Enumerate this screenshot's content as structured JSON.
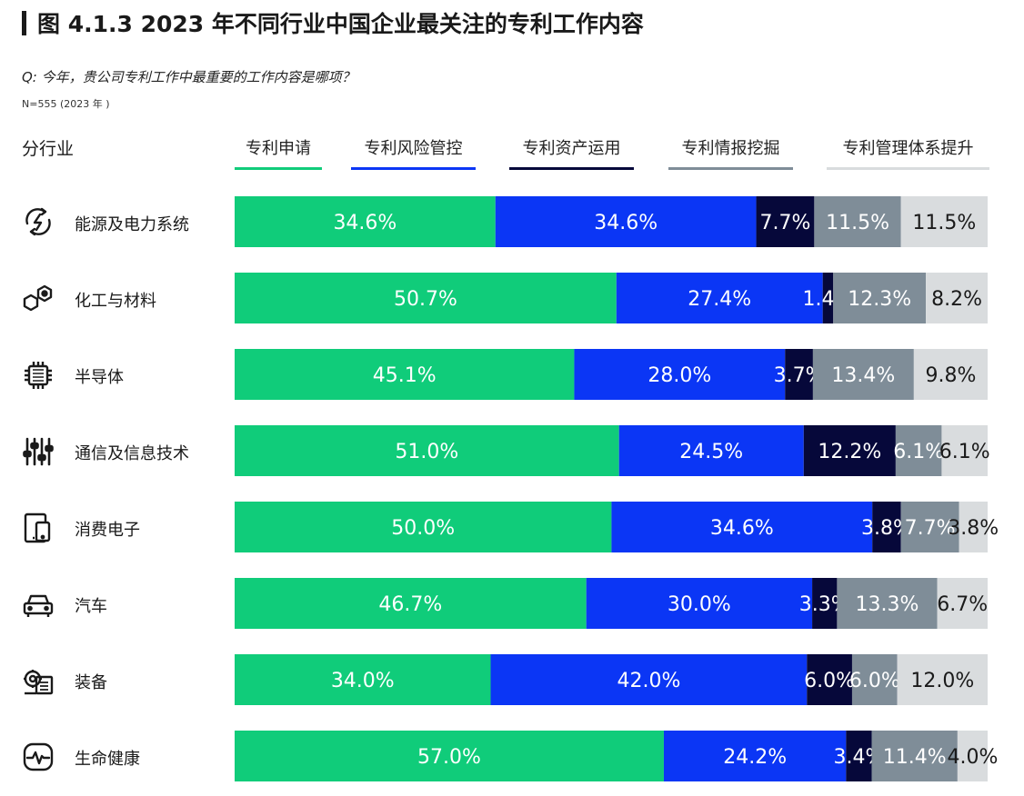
{
  "title": "图 4.1.3 2023 年不同行业中国企业最关注的专利工作内容",
  "question": "Q: 今年，贵公司专利工作中最重要的工作内容是哪项？",
  "sample": "N=555 (2023 年 )",
  "row_header": "分行业",
  "chart_data": {
    "type": "bar",
    "orientation": "horizontal",
    "stacked": true,
    "normalized": true,
    "title": "图 4.1.3 2023 年不同行业中国企业最关注的专利工作内容",
    "categories": [
      "能源及电力系统",
      "化工与材料",
      "半导体",
      "通信及信息技术",
      "消费电子",
      "汽车",
      "装备",
      "生命健康"
    ],
    "series": [
      {
        "name": "专利申请",
        "color": "#10cc7a",
        "values": [
          34.6,
          50.7,
          45.1,
          51.0,
          50.0,
          46.7,
          34.0,
          57.0
        ]
      },
      {
        "name": "专利风险管控",
        "color": "#0b36f5",
        "values": [
          34.6,
          27.4,
          28.0,
          24.5,
          34.6,
          30.0,
          42.0,
          24.2
        ]
      },
      {
        "name": "专利资产运用",
        "color": "#06083a",
        "values": [
          7.7,
          1.4,
          3.7,
          12.2,
          3.8,
          3.3,
          6.0,
          3.4
        ]
      },
      {
        "name": "专利情报挖掘",
        "color": "#7f8d98",
        "values": [
          11.5,
          12.3,
          13.4,
          6.1,
          7.7,
          13.3,
          6.0,
          11.4
        ]
      },
      {
        "name": "专利管理体系提升",
        "color": "#d9dcde",
        "values": [
          11.5,
          8.2,
          9.8,
          6.1,
          3.8,
          6.7,
          12.0,
          4.0
        ]
      }
    ],
    "labels": [
      [
        "34.6%",
        "34.6%",
        "7.7%",
        "11.5%",
        "11.5%"
      ],
      [
        "50.7%",
        "27.4%",
        "1.4%",
        "12.3%",
        "8.2%"
      ],
      [
        "45.1%",
        "28.0%",
        "3.7%",
        "13.4%",
        "9.8%"
      ],
      [
        "51.0%",
        "24.5%",
        "12.2%",
        "6.1%",
        "6.1%"
      ],
      [
        "50.0%",
        "34.6%",
        "3.8%",
        "7.7%",
        "3.8%"
      ],
      [
        "46.7%",
        "30.0%",
        "3.3%",
        "13.3%",
        "6.7%"
      ],
      [
        "34.0%",
        "42.0%",
        "6.0%",
        "6.0%",
        "12.0%"
      ],
      [
        "57.0%",
        "24.2%",
        "3.4%",
        "11.4%",
        "4.0%"
      ]
    ],
    "label_colors": [
      "#ffffff",
      "#ffffff",
      "#ffffff",
      "#ffffff",
      "#1a1a1a"
    ],
    "xlim": [
      0,
      100
    ],
    "icons": [
      "energy-icon",
      "chemical-icon",
      "chip-icon",
      "telecom-icon",
      "consumer-electronics-icon",
      "car-icon",
      "equipment-icon",
      "health-icon"
    ]
  }
}
